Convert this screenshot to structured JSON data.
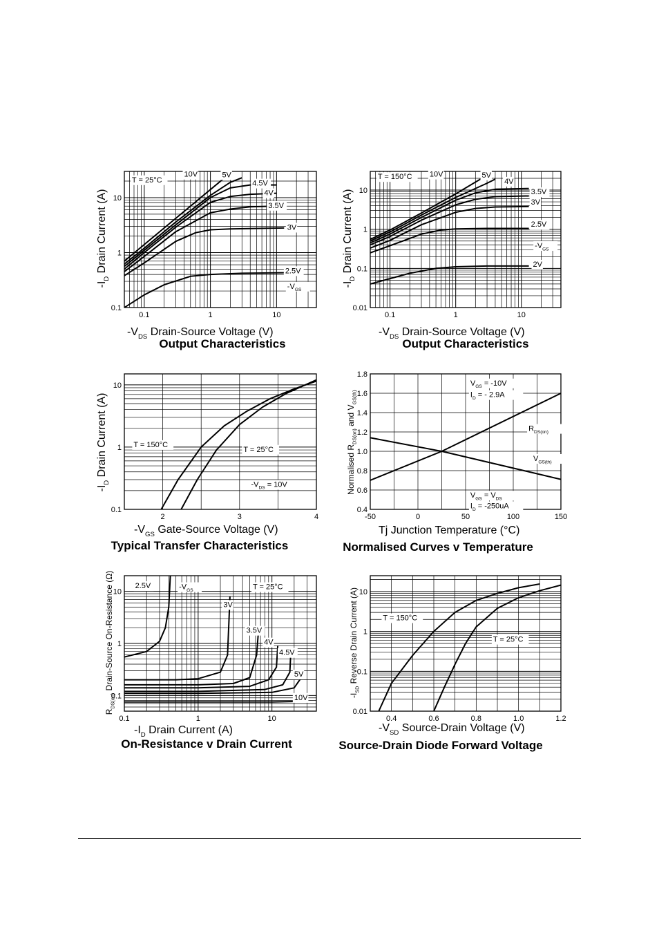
{
  "chart_data": [
    {
      "type": "line",
      "title": "Output Characteristics",
      "xlabel": "-V_DS Drain-Source Voltage (V)",
      "ylabel": "-I_D Drain Current (A)",
      "xscale": "log",
      "yscale": "log",
      "xlim": [
        0.05,
        40
      ],
      "ylim": [
        0.1,
        30
      ],
      "xticks": [
        {
          "v": 0.1,
          "t": "0.1"
        },
        {
          "v": 1,
          "t": "1"
        },
        {
          "v": 10,
          "t": "10"
        }
      ],
      "yticks": [
        {
          "v": 0.1,
          "t": "0.1"
        },
        {
          "v": 1,
          "t": "1"
        },
        {
          "v": 10,
          "t": "10"
        }
      ],
      "grid": true,
      "series": [
        {
          "name": "10V",
          "x": [
            0.05,
            0.1,
            0.3,
            1,
            2
          ],
          "y": [
            0.7,
            1.4,
            4.2,
            14,
            28
          ]
        },
        {
          "name": "5V",
          "x": [
            0.05,
            0.1,
            0.3,
            1,
            2,
            3
          ],
          "y": [
            0.62,
            1.2,
            3.6,
            11,
            19,
            23
          ]
        },
        {
          "name": "4.5V",
          "x": [
            0.05,
            0.1,
            0.3,
            1,
            2,
            4,
            10
          ],
          "y": [
            0.56,
            1.1,
            3.2,
            10,
            15,
            17,
            17
          ]
        },
        {
          "name": "4V",
          "x": [
            0.05,
            0.1,
            0.3,
            1,
            2,
            4,
            10
          ],
          "y": [
            0.5,
            1.0,
            2.9,
            8.2,
            10.5,
            11.5,
            12
          ]
        },
        {
          "name": "3.5V",
          "x": [
            0.05,
            0.1,
            0.3,
            1,
            2,
            4,
            10
          ],
          "y": [
            0.45,
            0.85,
            2.4,
            5.3,
            6.2,
            6.8,
            7
          ]
        },
        {
          "name": "3V",
          "x": [
            0.05,
            0.1,
            0.3,
            0.6,
            1,
            2,
            13
          ],
          "y": [
            0.38,
            0.65,
            1.6,
            2.3,
            2.6,
            2.7,
            2.8
          ]
        },
        {
          "name": "2.5V",
          "x": [
            0.05,
            0.1,
            0.2,
            0.5,
            1,
            3,
            13
          ],
          "y": [
            0.1,
            0.17,
            0.26,
            0.37,
            0.4,
            0.42,
            0.43
          ]
        }
      ],
      "annotations": [
        "T = 25°C",
        "10V",
        "5V",
        "4.5V",
        "4V",
        "3.5V",
        "3V",
        "2.5V",
        "-V_GS"
      ]
    },
    {
      "type": "line",
      "title": "Output Characteristics",
      "xlabel": "-V_DS Drain-Source Voltage (V)",
      "ylabel": "-I_D Drain Current (A)",
      "xscale": "log",
      "yscale": "log",
      "xlim": [
        0.05,
        40
      ],
      "ylim": [
        0.01,
        30
      ],
      "xticks": [
        {
          "v": 0.1,
          "t": "0.1"
        },
        {
          "v": 1,
          "t": "1"
        },
        {
          "v": 10,
          "t": "10"
        }
      ],
      "yticks": [
        {
          "v": 0.01,
          "t": "0.01"
        },
        {
          "v": 0.1,
          "t": "0.1"
        },
        {
          "v": 1,
          "t": "1"
        },
        {
          "v": 10,
          "t": "10"
        }
      ],
      "grid": true,
      "series": [
        {
          "name": "10V",
          "x": [
            0.05,
            0.1,
            0.3,
            1,
            2.5
          ],
          "y": [
            0.55,
            0.95,
            2.6,
            8,
            20
          ]
        },
        {
          "name": "5V",
          "x": [
            0.05,
            0.1,
            0.3,
            1,
            3,
            4
          ],
          "y": [
            0.5,
            0.85,
            2.3,
            6.5,
            15,
            19
          ]
        },
        {
          "name": "4V",
          "x": [
            0.05,
            0.1,
            0.3,
            1,
            2,
            4,
            13
          ],
          "y": [
            0.45,
            0.75,
            2.0,
            5.5,
            8.5,
            10.5,
            11
          ]
        },
        {
          "name": "3.5V",
          "x": [
            0.05,
            0.1,
            0.3,
            1,
            2,
            4,
            13
          ],
          "y": [
            0.4,
            0.65,
            1.7,
            4.2,
            5.8,
            6.8,
            7.1
          ]
        },
        {
          "name": "3V",
          "x": [
            0.05,
            0.1,
            0.3,
            1,
            2,
            4,
            13
          ],
          "y": [
            0.33,
            0.52,
            1.3,
            2.7,
            3.4,
            3.7,
            3.8
          ]
        },
        {
          "name": "2.5V",
          "x": [
            0.05,
            0.1,
            0.3,
            0.6,
            1,
            3,
            13
          ],
          "y": [
            0.25,
            0.38,
            0.75,
            0.95,
            1.02,
            1.05,
            1.05
          ]
        },
        {
          "name": "2V",
          "x": [
            0.05,
            0.1,
            0.2,
            0.5,
            1,
            3,
            13
          ],
          "y": [
            0.04,
            0.055,
            0.075,
            0.1,
            0.11,
            0.115,
            0.115
          ]
        }
      ],
      "annotations": [
        "T = 150°C",
        "10V",
        "5V",
        "4V",
        "3.5V",
        "3V",
        "2.5V",
        "-V_GS",
        "2V"
      ]
    },
    {
      "type": "line",
      "title": "Typical Transfer Characteristics",
      "xlabel": "-V_GS Gate-Source Voltage (V)",
      "ylabel": "-I_D Drain Current (A)",
      "xscale": "linear",
      "yscale": "log",
      "xlim": [
        1.5,
        4
      ],
      "ylim": [
        0.1,
        15
      ],
      "xticks": [
        {
          "v": 2,
          "t": "2"
        },
        {
          "v": 3,
          "t": "3"
        },
        {
          "v": 4,
          "t": "4"
        }
      ],
      "yticks": [
        {
          "v": 0.1,
          "t": "0.1"
        },
        {
          "v": 1,
          "t": "1"
        },
        {
          "v": 10,
          "t": "10"
        }
      ],
      "grid": true,
      "series": [
        {
          "name": "T = 150°C",
          "x": [
            1.98,
            2.2,
            2.5,
            2.8,
            3.1,
            3.4,
            3.7,
            4.0
          ],
          "y": [
            0.1,
            0.3,
            1.0,
            2.2,
            3.8,
            6.0,
            8.5,
            11.5
          ]
        },
        {
          "name": "T = 25°C",
          "x": [
            2.24,
            2.45,
            2.7,
            3.0,
            3.3,
            3.6,
            4.0
          ],
          "y": [
            0.1,
            0.3,
            0.9,
            2.3,
            4.4,
            7.2,
            12
          ]
        }
      ],
      "annotations": [
        "T = 150°C",
        "T = 25°C",
        "-V_DS = 10V"
      ]
    },
    {
      "type": "line",
      "title": "Normalised Curves v Temperature",
      "xlabel": "Tj Junction Temperature (°C)",
      "ylabel": "Normalised R_DS(on) and V_GS(th)",
      "xscale": "linear",
      "yscale": "linear",
      "xlim": [
        -50,
        150
      ],
      "ylim": [
        0.4,
        1.8
      ],
      "xticks": [
        {
          "v": -50,
          "t": "-50"
        },
        {
          "v": 0,
          "t": "0"
        },
        {
          "v": 50,
          "t": "50"
        },
        {
          "v": 100,
          "t": "100"
        },
        {
          "v": 150,
          "t": "150"
        }
      ],
      "yticks": [
        {
          "v": 0.4,
          "t": "0.4"
        },
        {
          "v": 0.6,
          "t": "0.6"
        },
        {
          "v": 0.8,
          "t": "0.8"
        },
        {
          "v": 1.0,
          "t": "1.0"
        },
        {
          "v": 1.2,
          "t": "1.2"
        },
        {
          "v": 1.4,
          "t": "1.4"
        },
        {
          "v": 1.6,
          "t": "1.6"
        },
        {
          "v": 1.8,
          "t": "1.8"
        }
      ],
      "grid": true,
      "series": [
        {
          "name": "R_DS(on)",
          "x": [
            -50,
            25,
            150
          ],
          "y": [
            0.7,
            1.0,
            1.6
          ]
        },
        {
          "name": "V_GS(th)",
          "x": [
            -50,
            25,
            150
          ],
          "y": [
            1.14,
            1.0,
            0.71
          ]
        }
      ],
      "annotations": [
        "V_GS = -10V",
        "I_D = - 2.9A",
        "R_DS(on)",
        "V_GS(th)",
        "V_GS = V_DS",
        "I_D = -250uA"
      ]
    },
    {
      "type": "line",
      "title": "On-Resistance v Drain Current",
      "xlabel": "-I_D Drain Current (A)",
      "ylabel": "R_DS(on) Drain-Source On-Resistance (Ω)",
      "xscale": "log",
      "yscale": "log",
      "xlim": [
        0.1,
        40
      ],
      "ylim": [
        0.05,
        20
      ],
      "xticks": [
        {
          "v": 0.1,
          "t": "0.1"
        },
        {
          "v": 1,
          "t": "1"
        },
        {
          "v": 10,
          "t": "10"
        }
      ],
      "yticks": [
        {
          "v": 0.1,
          "t": "0.1"
        },
        {
          "v": 1,
          "t": "1"
        },
        {
          "v": 10,
          "t": "10"
        }
      ],
      "grid": true,
      "series": [
        {
          "name": "2.5V",
          "x": [
            0.1,
            0.2,
            0.3,
            0.36,
            0.4,
            0.42
          ],
          "y": [
            0.55,
            0.7,
            1.1,
            2.0,
            5.0,
            20
          ]
        },
        {
          "name": "3V",
          "x": [
            0.1,
            0.5,
            1,
            2,
            2.5,
            2.7
          ],
          "y": [
            0.2,
            0.2,
            0.21,
            0.28,
            0.6,
            8
          ]
        },
        {
          "name": "3.5V",
          "x": [
            0.1,
            1,
            3,
            5,
            6.2,
            6.6
          ],
          "y": [
            0.16,
            0.16,
            0.17,
            0.22,
            0.6,
            1.9
          ]
        },
        {
          "name": "4V",
          "x": [
            0.1,
            1,
            5,
            9,
            11.5,
            12
          ],
          "y": [
            0.14,
            0.14,
            0.15,
            0.2,
            0.35,
            0.9
          ]
        },
        {
          "name": "4.5V",
          "x": [
            0.1,
            1,
            8,
            14,
            17.5,
            18
          ],
          "y": [
            0.12,
            0.12,
            0.13,
            0.16,
            0.28,
            0.65
          ]
        },
        {
          "name": "5V",
          "x": [
            0.1,
            1,
            10,
            20,
            25
          ],
          "y": [
            0.11,
            0.11,
            0.115,
            0.14,
            0.22
          ]
        },
        {
          "name": "10V",
          "x": [
            0.1,
            1,
            10,
            25
          ],
          "y": [
            0.075,
            0.075,
            0.075,
            0.077
          ]
        }
      ],
      "annotations": [
        "2.5V",
        "-V_GS",
        "3V",
        "T = 25°C",
        "3.5V",
        "4V",
        "4.5V",
        "5V",
        "10V"
      ]
    },
    {
      "type": "line",
      "title": "Source-Drain Diode Forward Voltage",
      "xlabel": "-V_SD Source-Drain Voltage (V)",
      "ylabel": "-I_SD Reverse Drain Current (A)",
      "xscale": "linear",
      "yscale": "log",
      "xlim": [
        0.3,
        1.2
      ],
      "ylim": [
        0.01,
        25
      ],
      "xticks": [
        {
          "v": 0.4,
          "t": "0.4"
        },
        {
          "v": 0.6,
          "t": "0.6"
        },
        {
          "v": 0.8,
          "t": "0.8"
        },
        {
          "v": 1.0,
          "t": "1.0"
        },
        {
          "v": 1.2,
          "t": "1.2"
        }
      ],
      "yticks": [
        {
          "v": 0.01,
          "t": "0.01"
        },
        {
          "v": 0.1,
          "t": "0.1"
        },
        {
          "v": 1,
          "t": "1"
        },
        {
          "v": 10,
          "t": "10"
        }
      ],
      "grid": true,
      "series": [
        {
          "name": "T = 150°C",
          "x": [
            0.34,
            0.4,
            0.5,
            0.6,
            0.7,
            0.8,
            0.9,
            1.0,
            1.1
          ],
          "y": [
            0.01,
            0.05,
            0.25,
            1.0,
            3.0,
            6.0,
            9.0,
            12.5,
            15.5
          ]
        },
        {
          "name": "T = 25°C",
          "x": [
            0.6,
            0.65,
            0.7,
            0.75,
            0.8,
            0.9,
            1.0,
            1.1,
            1.2
          ],
          "y": [
            0.01,
            0.04,
            0.15,
            0.5,
            1.3,
            3.8,
            7.0,
            10.5,
            14.5
          ]
        }
      ],
      "annotations": [
        "T = 150°C",
        "T = 25°C"
      ]
    }
  ]
}
